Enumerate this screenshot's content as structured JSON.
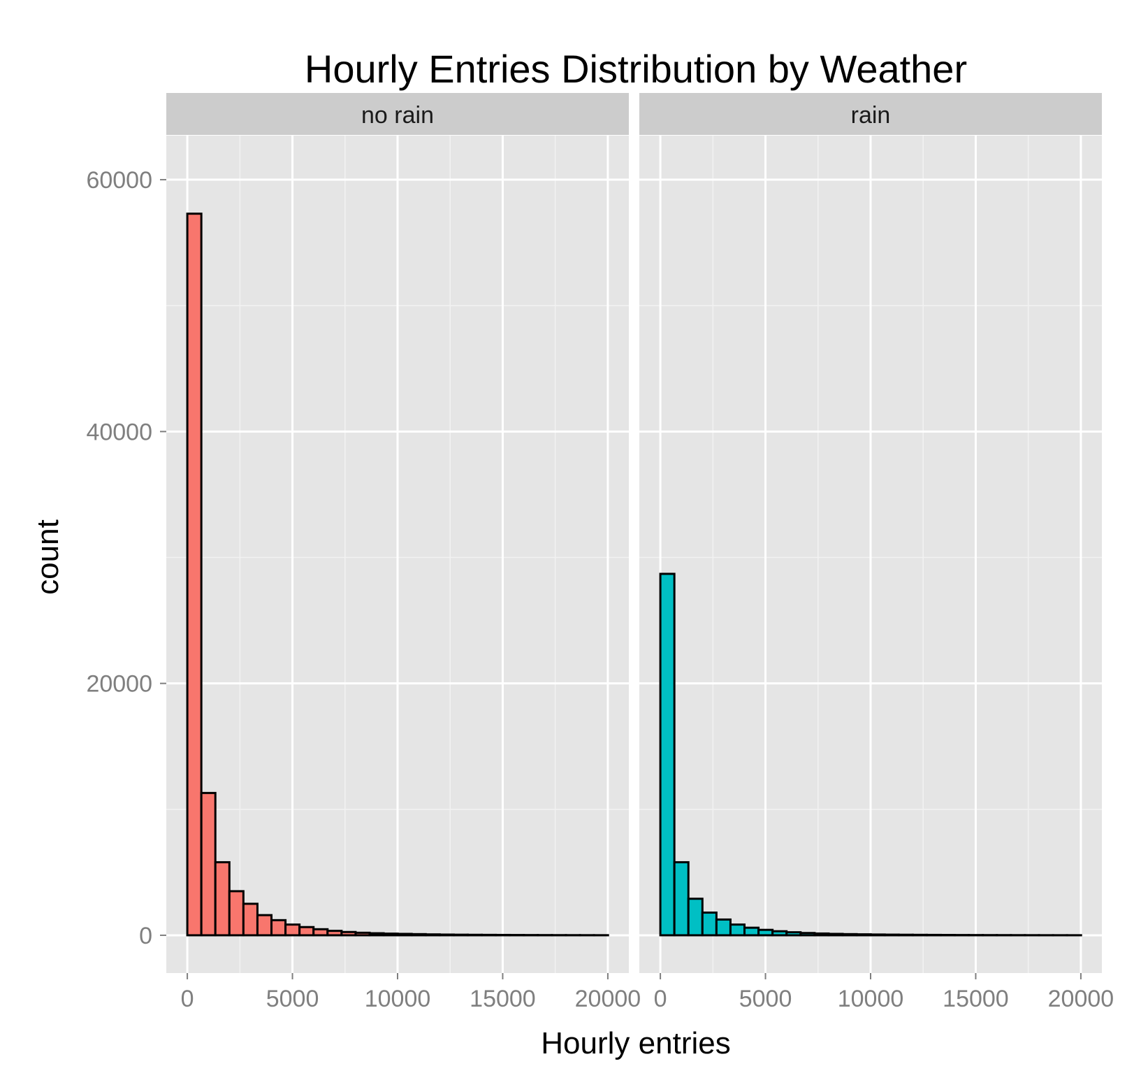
{
  "chart_data": {
    "type": "bar",
    "subtype": "faceted-histogram",
    "title": "Hourly Entries Distribution by Weather",
    "xlabel": "Hourly entries",
    "ylabel": "count",
    "xlim": [
      -1000,
      21000
    ],
    "ylim": [
      -3000,
      63500
    ],
    "x_ticks": [
      "0",
      "5000",
      "10000",
      "15000",
      "20000"
    ],
    "x_tick_values": [
      0,
      5000,
      10000,
      15000,
      20000
    ],
    "y_ticks": [
      "0",
      "20000",
      "40000",
      "60000"
    ],
    "y_tick_values": [
      0,
      20000,
      40000,
      60000
    ],
    "bin_width": 667,
    "grid": true,
    "background": "#e5e5e5",
    "bar_outline": "#000000",
    "facets": [
      {
        "label": "no rain",
        "color": "#f8766d",
        "values": [
          57300,
          11300,
          5800,
          3500,
          2500,
          1600,
          1200,
          850,
          650,
          480,
          350,
          260,
          200,
          160,
          130,
          110,
          90,
          70,
          55,
          45,
          38,
          32,
          27,
          22,
          18,
          15,
          12,
          10,
          8,
          6
        ]
      },
      {
        "label": "rain",
        "color": "#00bfc4",
        "values": [
          28700,
          5800,
          2900,
          1800,
          1250,
          850,
          600,
          430,
          320,
          240,
          180,
          140,
          110,
          90,
          75,
          60,
          50,
          42,
          35,
          30,
          25,
          20,
          17,
          14,
          12,
          10,
          8,
          6,
          5,
          4
        ]
      }
    ]
  }
}
